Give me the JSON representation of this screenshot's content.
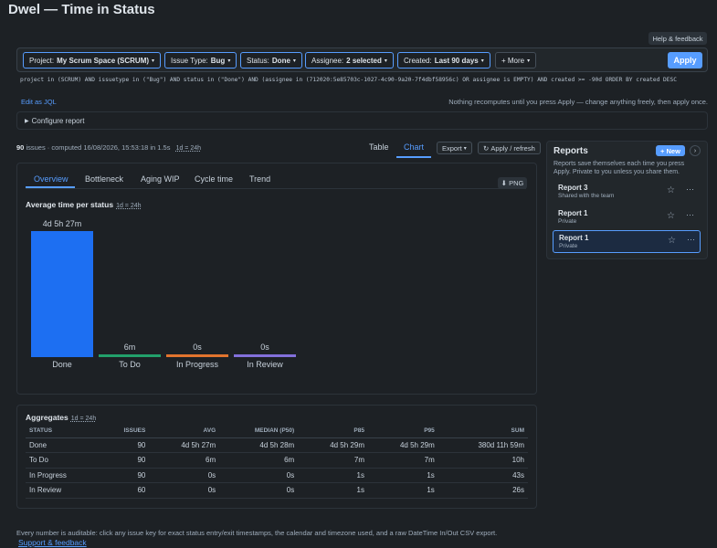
{
  "app": {
    "title": "Dwel — Time in Status",
    "help_label": "Help & feedback"
  },
  "filters": [
    {
      "prefix": "Project:",
      "value": "My Scrum Space (SCRUM)"
    },
    {
      "prefix": "Issue Type:",
      "value": "Bug"
    },
    {
      "prefix": "Status:",
      "value": "Done"
    },
    {
      "prefix": "Assignee:",
      "value": "2 selected"
    },
    {
      "prefix": "Created:",
      "value": "Last 90 days"
    }
  ],
  "more_label": "+ More",
  "apply_label": "Apply",
  "jql": "project in (SCRUM) AND issuetype in (\"Bug\") AND status in (\"Done\") AND (assignee in (712020:5e85703c-1027-4c90-9a20-7f4dbf58956c) OR assignee is EMPTY) AND created >= -90d ORDER BY created DESC",
  "edit_jql_label": "Edit as JQL",
  "hint_text": "Nothing recomputes until you press Apply — change anything freely, then apply once.",
  "configure_label": "Configure report",
  "summary": {
    "count": "90",
    "text": "issues · computed 16/08/2026, 15:53:18 in 1.5s",
    "day_badge": "1d = 24h"
  },
  "view_tabs": {
    "table": "Table",
    "chart": "Chart"
  },
  "export_label": "Export",
  "refresh_label": "Apply / refresh",
  "sub_tabs": [
    "Overview",
    "Bottleneck",
    "Aging WIP",
    "Cycle time",
    "Trend"
  ],
  "png_label": "PNG",
  "chart_data": {
    "type": "bar",
    "title": "Average time per status",
    "badge": "1d = 24h",
    "categories": [
      "Done",
      "To Do",
      "In Progress",
      "In Review"
    ],
    "values_hours": [
      101.45,
      0.1,
      0,
      0
    ],
    "value_labels": [
      "4d 5h 27m",
      "6m",
      "0s",
      "0s"
    ],
    "colors": [
      "#1d6ff2",
      "#22a06b",
      "#e2742e",
      "#8270db"
    ]
  },
  "reports": {
    "title": "Reports",
    "new_label": "+ New",
    "description": "Reports save themselves each time you press Apply. Private to you unless you share them.",
    "items": [
      {
        "name": "Report 3",
        "sub": "Shared with the team"
      },
      {
        "name": "Report 1",
        "sub": "Private"
      },
      {
        "name": "Report 1",
        "sub": "Private"
      }
    ]
  },
  "aggregates": {
    "title": "Aggregates",
    "badge": "1d = 24h",
    "headers": [
      "STATUS",
      "ISSUES",
      "AVG",
      "MEDIAN (P50)",
      "P85",
      "P95",
      "SUM"
    ],
    "rows": [
      [
        "Done",
        "90",
        "4d 5h 27m",
        "4d 5h 28m",
        "4d 5h 29m",
        "4d 5h 29m",
        "380d 11h 59m"
      ],
      [
        "To Do",
        "90",
        "6m",
        "6m",
        "7m",
        "7m",
        "10h"
      ],
      [
        "In Progress",
        "90",
        "0s",
        "0s",
        "1s",
        "1s",
        "43s"
      ],
      [
        "In Review",
        "60",
        "0s",
        "0s",
        "1s",
        "1s",
        "26s"
      ]
    ]
  },
  "footer_text": "Every number is auditable: click any issue key for exact status entry/exit timestamps, the calendar and timezone used, and a raw DateTime In/Out CSV export.",
  "support_label": "Support & feedback"
}
